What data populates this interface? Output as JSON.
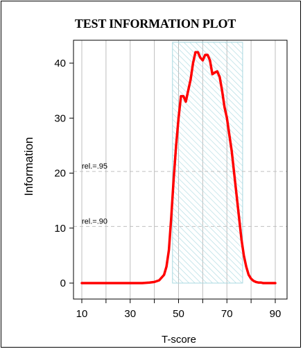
{
  "chart_data": {
    "type": "line",
    "title": "TEST INFORMATION PLOT",
    "xlabel": "T-score",
    "ylabel": "Information",
    "xlim": [
      10,
      90
    ],
    "ylim": [
      0,
      42
    ],
    "x_ticks": [
      10,
      30,
      50,
      70,
      90
    ],
    "y_ticks": [
      0,
      10,
      20,
      30,
      40
    ],
    "x_gridlines": [
      10,
      20,
      30,
      40,
      50,
      60,
      70,
      80,
      90
    ],
    "grid": true,
    "highlight_region": {
      "x_start": 47.5,
      "x_end": 76.5,
      "fill": "hatched",
      "color": "#a8d8e0"
    },
    "reference_lines": [
      {
        "y": 20.3,
        "label": "rel.=.95"
      },
      {
        "y": 10.3,
        "label": "rel.=.90"
      }
    ],
    "series": [
      {
        "color": "#ff0000",
        "x": [
          10,
          15,
          20,
          25,
          30,
          35,
          38,
          40,
          42,
          44,
          45,
          46,
          47,
          48,
          49,
          50,
          51,
          52,
          53,
          54,
          55,
          56,
          57,
          58,
          59,
          60,
          61,
          62,
          63,
          64,
          65,
          66,
          67,
          68,
          69,
          70,
          71,
          72,
          73,
          74,
          75,
          76,
          77,
          78,
          79,
          80,
          81,
          82,
          83,
          84,
          85,
          87,
          89,
          90
        ],
        "y": [
          0,
          0,
          0,
          0,
          0,
          0,
          0.1,
          0.2,
          0.5,
          1.5,
          3,
          6,
          12,
          19,
          25,
          30,
          34,
          34,
          33,
          35,
          37,
          40,
          42,
          42,
          41,
          40.5,
          41.5,
          41.5,
          40.5,
          38,
          38.3,
          38.5,
          37.5,
          35,
          32,
          30,
          27,
          24,
          20,
          16,
          12,
          8,
          5,
          3,
          1.5,
          0.8,
          0.4,
          0.2,
          0.1,
          0.1,
          0,
          0,
          0,
          0
        ]
      }
    ]
  },
  "colors": {
    "line": "#ff0000",
    "grid": "#bebebe",
    "reference": "#c0c0c0",
    "hatch": "#a8d8e0",
    "axis": "#000000"
  }
}
